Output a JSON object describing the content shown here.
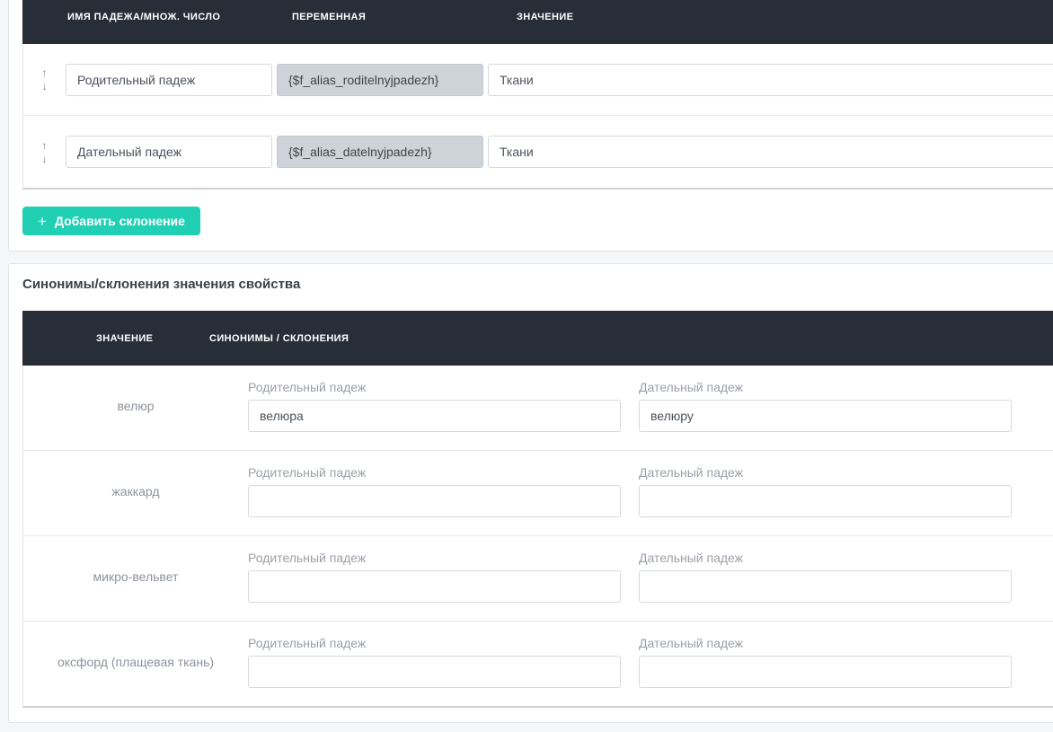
{
  "colors": {
    "accent_teal": "#21d0b3",
    "table_header_bg": "#272e38",
    "page_bg": "#f5f6f8",
    "disabled_input_bg": "#cdd3d9"
  },
  "declensions": {
    "headers": [
      "ИМЯ ПАДЕЖА/МНОЖ. ЧИСЛО",
      "ПЕРЕМЕННАЯ",
      "ЗНАЧЕНИЕ"
    ],
    "rows": [
      {
        "name": "Родительный падеж",
        "variable": "{$f_alias_roditelnyjpadezh}",
        "value": "Ткани"
      },
      {
        "name": "Дательный падеж",
        "variable": "{$f_alias_datelnyjpadezh}",
        "value": "Ткани"
      }
    ],
    "drag_up_icon": "↑",
    "drag_down_icon": "↓",
    "add_button_icon": "+",
    "add_button_label": "Добавить склонение"
  },
  "synonyms": {
    "title": "Синонимы/склонения значения свойства",
    "headers": [
      "ЗНАЧЕНИЕ",
      "СИНОНИМЫ / СКЛОНЕНИЯ"
    ],
    "rows": [
      {
        "value": "велюр",
        "fields": [
          {
            "label": "Родительный падеж",
            "value": "велюра"
          },
          {
            "label": "Дательный падеж",
            "value": "велюру"
          }
        ]
      },
      {
        "value": "жаккард",
        "fields": [
          {
            "label": "Родительный падеж",
            "value": ""
          },
          {
            "label": "Дательный падеж",
            "value": ""
          }
        ]
      },
      {
        "value": "микро-вельвет",
        "fields": [
          {
            "label": "Родительный падеж",
            "value": ""
          },
          {
            "label": "Дательный падеж",
            "value": ""
          }
        ]
      },
      {
        "value": "оксфорд (плащевая ткань)",
        "fields": [
          {
            "label": "Родительный падеж",
            "value": ""
          },
          {
            "label": "Дательный падеж",
            "value": ""
          }
        ]
      }
    ]
  }
}
